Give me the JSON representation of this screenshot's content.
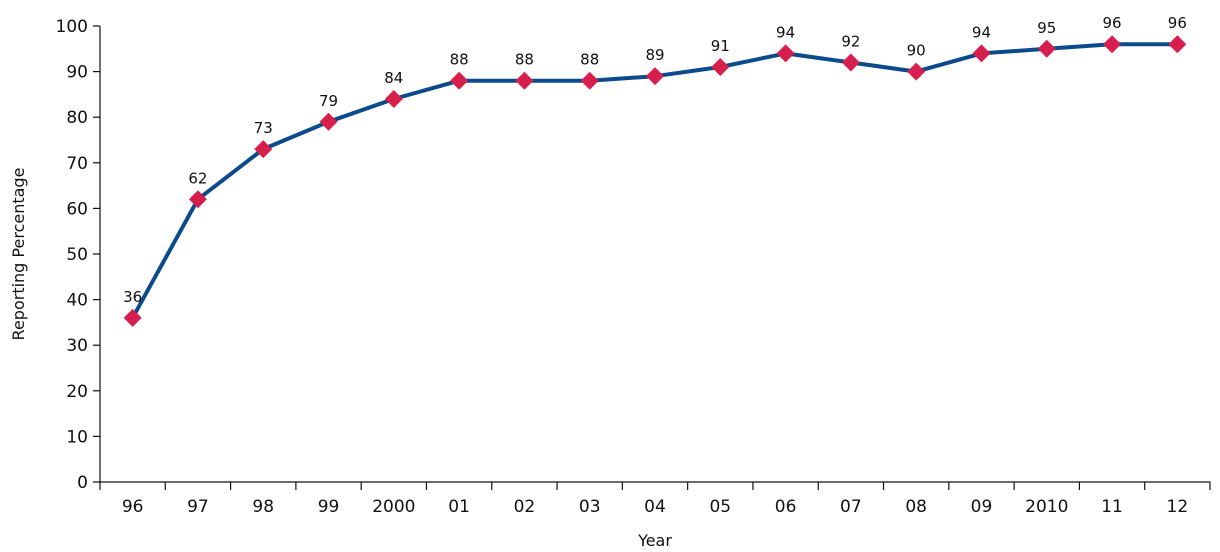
{
  "chart_data": {
    "type": "line",
    "title": "",
    "xlabel": "Year",
    "ylabel": "Reporting Percentage",
    "categories": [
      "96",
      "97",
      "98",
      "99",
      "2000",
      "01",
      "02",
      "03",
      "04",
      "05",
      "06",
      "07",
      "08",
      "09",
      "2010",
      "11",
      "12"
    ],
    "series": [
      {
        "values": [
          36,
          62,
          73,
          79,
          84,
          88,
          88,
          88,
          89,
          91,
          94,
          92,
          90,
          94,
          95,
          96,
          96
        ],
        "line_color": "#0b4a8b",
        "marker_color": "#d61f4d",
        "marker": "diamond"
      }
    ],
    "ylim": [
      0,
      100
    ],
    "yticks": [
      0,
      10,
      20,
      30,
      40,
      50,
      60,
      70,
      80,
      90,
      100
    ],
    "grid": false,
    "legend": "none",
    "data_labels": true
  }
}
